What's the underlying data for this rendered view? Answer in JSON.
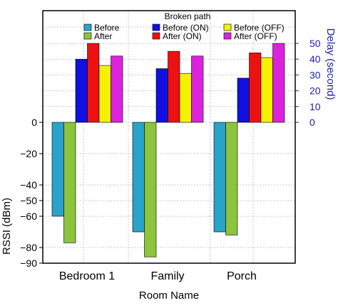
{
  "chart_data": {
    "type": "bar",
    "categories": [
      "Bedroom 1",
      "Family",
      "Porch"
    ],
    "xlabel": "Room Name",
    "ylabel_left": "RSSI (dBm)",
    "ylabel_right": "Delay (second)",
    "legend_title": "Broken path",
    "ylim_left": [
      -90,
      0
    ],
    "ylim_right": [
      0,
      50
    ],
    "left_ticks": [
      "0",
      "−20",
      "−40",
      "−50",
      "−60",
      "−80",
      "−90"
    ],
    "left_tick_values": [
      0,
      -20,
      -40,
      -50,
      -60,
      -80,
      -90
    ],
    "right_ticks": [
      "0",
      "10",
      "20",
      "30",
      "40",
      "50"
    ],
    "right_tick_values": [
      0,
      10,
      20,
      30,
      40,
      50
    ],
    "grid": true,
    "legend_placement": "top",
    "rssi_series": [
      {
        "name": "Before",
        "color": "#29a3c9",
        "values": [
          -60,
          -70,
          -70
        ]
      },
      {
        "name": "After",
        "color": "#8cc43c",
        "values": [
          -77,
          -86,
          -72
        ]
      }
    ],
    "delay_series": [
      {
        "name": "Before (ON)",
        "color": "#1010e0",
        "values": [
          40,
          34,
          28
        ]
      },
      {
        "name": "After (ON)",
        "color": "#ee1111",
        "values": [
          50,
          45,
          44
        ]
      },
      {
        "name": "Before (OFF)",
        "color": "#f4f200",
        "values": [
          36,
          31,
          41
        ]
      },
      {
        "name": "After (OFF)",
        "color": "#dd22dd",
        "values": [
          42,
          42,
          50
        ]
      }
    ]
  }
}
